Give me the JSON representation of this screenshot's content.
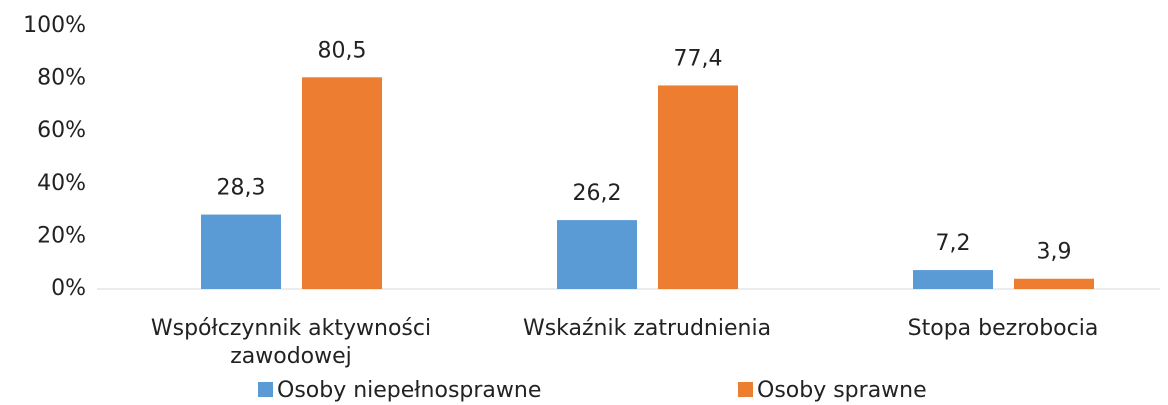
{
  "chart_data": {
    "type": "bar",
    "categories": [
      "Współczynnik aktywności zawodowej",
      "Wskaźnik zatrudnienia",
      "Stopa bezrobocia"
    ],
    "series": [
      {
        "name": "Osoby niepełnosprawne",
        "color": "#5b9bd5",
        "values": [
          28.3,
          26.2,
          7.2
        ],
        "value_labels": [
          "28,3",
          "26,2",
          "7,2"
        ]
      },
      {
        "name": "Osoby sprawne",
        "color": "#ed7d31",
        "values": [
          80.5,
          77.4,
          3.9
        ],
        "value_labels": [
          "80,5",
          "77,4",
          "3,9"
        ]
      }
    ],
    "ylim": [
      0,
      100
    ],
    "yticks": [
      {
        "value": 0,
        "label": "0%"
      },
      {
        "value": 20,
        "label": "20%"
      },
      {
        "value": 40,
        "label": "40%"
      },
      {
        "value": 60,
        "label": "60%"
      },
      {
        "value": 80,
        "label": "80%"
      },
      {
        "value": 100,
        "label": "100%"
      }
    ],
    "grid": false,
    "legend": "bottom"
  }
}
